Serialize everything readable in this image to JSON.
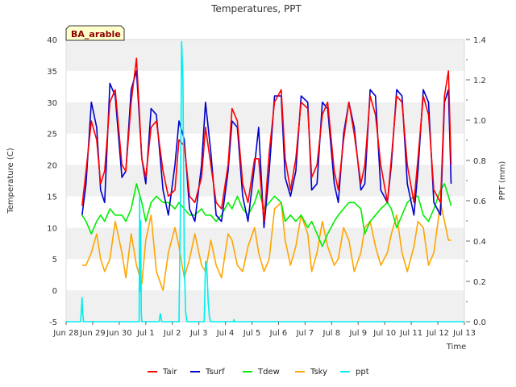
{
  "chart_data": {
    "type": "line",
    "title": "Temperatures, PPT",
    "badge": "BA_arable",
    "xlabel": "Time",
    "ylabel": "Temperature (C)",
    "y2label": "PPT (mm)",
    "ylim": [
      -5,
      40
    ],
    "y2lim": [
      0,
      1.4
    ],
    "y_ticks": [
      "-5",
      "0",
      "5",
      "10",
      "15",
      "20",
      "25",
      "30",
      "35",
      "40"
    ],
    "y2_ticks": [
      "0.0",
      "0.2",
      "0.4",
      "0.6",
      "0.8",
      "1.0",
      "1.2",
      "1.4"
    ],
    "x_ticks": [
      "Jun 28",
      "Jun 29",
      "Jun 30",
      "Jul 1",
      "Jul 2",
      "Jul 3",
      "Jul 4",
      "Jul 5",
      "Jul 6",
      "Jul 7",
      "Jul 8",
      "Jul 9",
      "Jul 10",
      "Jul 11",
      "Jul 12",
      "Jul 13"
    ],
    "x_range_days": [
      0,
      15
    ],
    "grid": "horizontal bands",
    "legend_position": "bottom",
    "colors": {
      "Tair": "#ff0000",
      "Tsurf": "#0000cc",
      "Tdew": "#00ee00",
      "Tsky": "#ffa500",
      "ppt": "#00eeee"
    },
    "legend": [
      "Tair",
      "Tsurf",
      "Tdew",
      "Tsky",
      "ppt"
    ],
    "series": [
      {
        "name": "Tair",
        "axis": "left",
        "x": [
          0.6,
          0.75,
          0.95,
          1.15,
          1.3,
          1.45,
          1.65,
          1.85,
          2.1,
          2.25,
          2.45,
          2.65,
          2.85,
          3.0,
          3.2,
          3.4,
          3.65,
          3.85,
          4.1,
          4.25,
          4.45,
          4.65,
          4.85,
          5.1,
          5.25,
          5.45,
          5.65,
          5.85,
          6.1,
          6.25,
          6.45,
          6.65,
          6.85,
          7.1,
          7.25,
          7.45,
          7.65,
          7.85,
          8.1,
          8.25,
          8.45,
          8.65,
          8.85,
          9.1,
          9.25,
          9.45,
          9.65,
          9.85,
          10.1,
          10.25,
          10.45,
          10.65,
          10.85,
          11.1,
          11.25,
          11.45,
          11.65,
          11.85,
          12.1,
          12.25,
          12.45,
          12.65,
          12.85,
          13.1,
          13.25,
          13.45,
          13.65,
          13.85,
          14.1,
          14.25,
          14.4,
          14.5
        ],
        "y": [
          13.5,
          19,
          27,
          24,
          17,
          19,
          30,
          32,
          20,
          19,
          30,
          37,
          21,
          18,
          26,
          27,
          19,
          15,
          16,
          24,
          23,
          15,
          14,
          18,
          26,
          20,
          14,
          13,
          20,
          29,
          27,
          17,
          14,
          21,
          21,
          11,
          22,
          30,
          32,
          21,
          16,
          21,
          30,
          29,
          18,
          20,
          28,
          30,
          19,
          16,
          24,
          30,
          25,
          17,
          20,
          31,
          28,
          20,
          14,
          21,
          31,
          30,
          20,
          14,
          21,
          31,
          28,
          16,
          14,
          31,
          35,
          20
        ]
      },
      {
        "name": "Tsurf",
        "axis": "left",
        "x": [
          0.6,
          0.75,
          0.95,
          1.15,
          1.3,
          1.45,
          1.65,
          1.85,
          2.1,
          2.25,
          2.45,
          2.65,
          2.85,
          3.0,
          3.2,
          3.4,
          3.65,
          3.85,
          4.1,
          4.25,
          4.45,
          4.65,
          4.85,
          5.1,
          5.25,
          5.45,
          5.65,
          5.85,
          6.1,
          6.25,
          6.45,
          6.65,
          6.85,
          7.1,
          7.25,
          7.45,
          7.65,
          7.85,
          8.1,
          8.25,
          8.45,
          8.65,
          8.85,
          9.1,
          9.25,
          9.45,
          9.65,
          9.85,
          10.1,
          10.25,
          10.45,
          10.65,
          10.85,
          11.1,
          11.25,
          11.45,
          11.65,
          11.85,
          12.1,
          12.25,
          12.45,
          12.65,
          12.85,
          13.1,
          13.25,
          13.45,
          13.65,
          13.85,
          14.1,
          14.25,
          14.4,
          14.5
        ],
        "y": [
          12,
          17,
          30,
          26,
          16,
          14,
          33,
          31,
          18,
          19,
          32,
          35,
          21,
          17,
          29,
          28,
          16,
          12,
          20,
          27,
          24,
          13,
          11,
          20,
          30,
          22,
          12,
          11,
          19,
          27,
          26,
          15,
          11,
          20,
          26,
          10,
          19,
          31,
          31,
          18,
          15,
          19,
          31,
          30,
          16,
          17,
          30,
          29,
          17,
          14,
          25,
          30,
          26,
          16,
          17,
          32,
          31,
          16,
          14,
          20,
          32,
          31,
          17,
          12,
          19,
          32,
          30,
          14,
          12,
          30,
          32,
          17
        ]
      },
      {
        "name": "Tdew",
        "axis": "left",
        "x": [
          0.6,
          0.75,
          0.95,
          1.15,
          1.3,
          1.45,
          1.65,
          1.85,
          2.1,
          2.25,
          2.45,
          2.65,
          2.85,
          3.0,
          3.2,
          3.4,
          3.65,
          3.85,
          4.1,
          4.25,
          4.45,
          4.65,
          4.85,
          5.1,
          5.25,
          5.45,
          5.65,
          5.85,
          6.1,
          6.25,
          6.45,
          6.65,
          6.85,
          7.1,
          7.25,
          7.45,
          7.65,
          7.85,
          8.1,
          8.25,
          8.45,
          8.65,
          8.85,
          9.1,
          9.25,
          9.45,
          9.65,
          9.85,
          10.1,
          10.25,
          10.45,
          10.65,
          10.85,
          11.1,
          11.25,
          11.45,
          11.65,
          11.85,
          12.1,
          12.25,
          12.45,
          12.65,
          12.85,
          13.1,
          13.25,
          13.45,
          13.65,
          13.85,
          14.1,
          14.25,
          14.4,
          14.5
        ],
        "y": [
          12,
          11,
          9,
          11,
          12,
          11,
          13,
          12,
          12,
          11,
          13,
          17,
          14,
          11,
          14,
          15,
          14,
          14,
          13,
          14,
          13,
          12,
          12,
          13,
          12,
          12,
          11,
          12,
          14,
          13,
          15,
          13,
          12,
          14,
          16,
          13,
          14,
          15,
          14,
          11,
          12,
          11,
          12,
          10,
          11,
          9,
          7,
          9,
          11,
          12,
          13,
          14,
          14,
          13,
          9,
          11,
          12,
          13,
          14,
          13,
          10,
          12,
          14,
          15,
          15,
          12,
          11,
          13,
          16,
          17,
          15,
          13.5
        ]
      },
      {
        "name": "Tsky",
        "axis": "left",
        "x": [
          0.6,
          0.75,
          0.95,
          1.15,
          1.3,
          1.45,
          1.65,
          1.85,
          2.1,
          2.25,
          2.45,
          2.65,
          2.85,
          3.0,
          3.2,
          3.4,
          3.65,
          3.85,
          4.1,
          4.25,
          4.45,
          4.65,
          4.85,
          5.1,
          5.25,
          5.45,
          5.65,
          5.85,
          6.1,
          6.25,
          6.45,
          6.65,
          6.85,
          7.1,
          7.25,
          7.45,
          7.65,
          7.85,
          8.1,
          8.25,
          8.45,
          8.65,
          8.85,
          9.1,
          9.25,
          9.45,
          9.65,
          9.85,
          10.1,
          10.25,
          10.45,
          10.65,
          10.85,
          11.1,
          11.25,
          11.45,
          11.65,
          11.85,
          12.1,
          12.25,
          12.45,
          12.65,
          12.85,
          13.1,
          13.25,
          13.45,
          13.65,
          13.85,
          14.1,
          14.25,
          14.4,
          14.5
        ],
        "y": [
          4,
          4,
          6,
          9,
          5,
          3,
          5,
          11,
          6,
          2,
          9,
          4,
          1,
          8,
          12,
          3,
          0,
          6,
          10,
          7,
          2,
          5,
          9,
          4,
          3,
          8,
          4,
          2,
          9,
          8,
          4,
          3,
          7,
          10,
          6,
          3,
          5,
          13,
          14,
          8,
          4,
          7,
          12,
          9,
          3,
          6,
          11,
          7,
          4,
          5,
          10,
          8,
          3,
          6,
          10,
          11,
          7,
          4,
          6,
          9,
          12,
          6,
          3,
          7,
          11,
          10,
          4,
          6,
          14,
          11,
          8,
          8
        ]
      },
      {
        "name": "ppt",
        "axis": "right",
        "x": [
          0.0,
          0.55,
          0.6,
          0.62,
          0.66,
          0.7,
          2.75,
          2.77,
          2.79,
          2.81,
          2.83,
          2.85,
          3.5,
          3.55,
          3.6,
          3.65,
          4.25,
          4.3,
          4.35,
          4.4,
          4.45,
          4.5,
          4.55,
          5.2,
          5.25,
          5.3,
          5.35,
          5.4,
          5.45,
          6.3,
          6.32,
          6.34,
          15.0
        ],
        "y": [
          0,
          0,
          0.12,
          0.05,
          0,
          0,
          0,
          0.62,
          0.15,
          0.5,
          0.05,
          0,
          0,
          0.04,
          0,
          0,
          0,
          0.5,
          1.39,
          1.2,
          0.3,
          0.05,
          0,
          0,
          0.3,
          0.27,
          0.1,
          0.02,
          0,
          0,
          0.01,
          0,
          0
        ]
      }
    ]
  }
}
